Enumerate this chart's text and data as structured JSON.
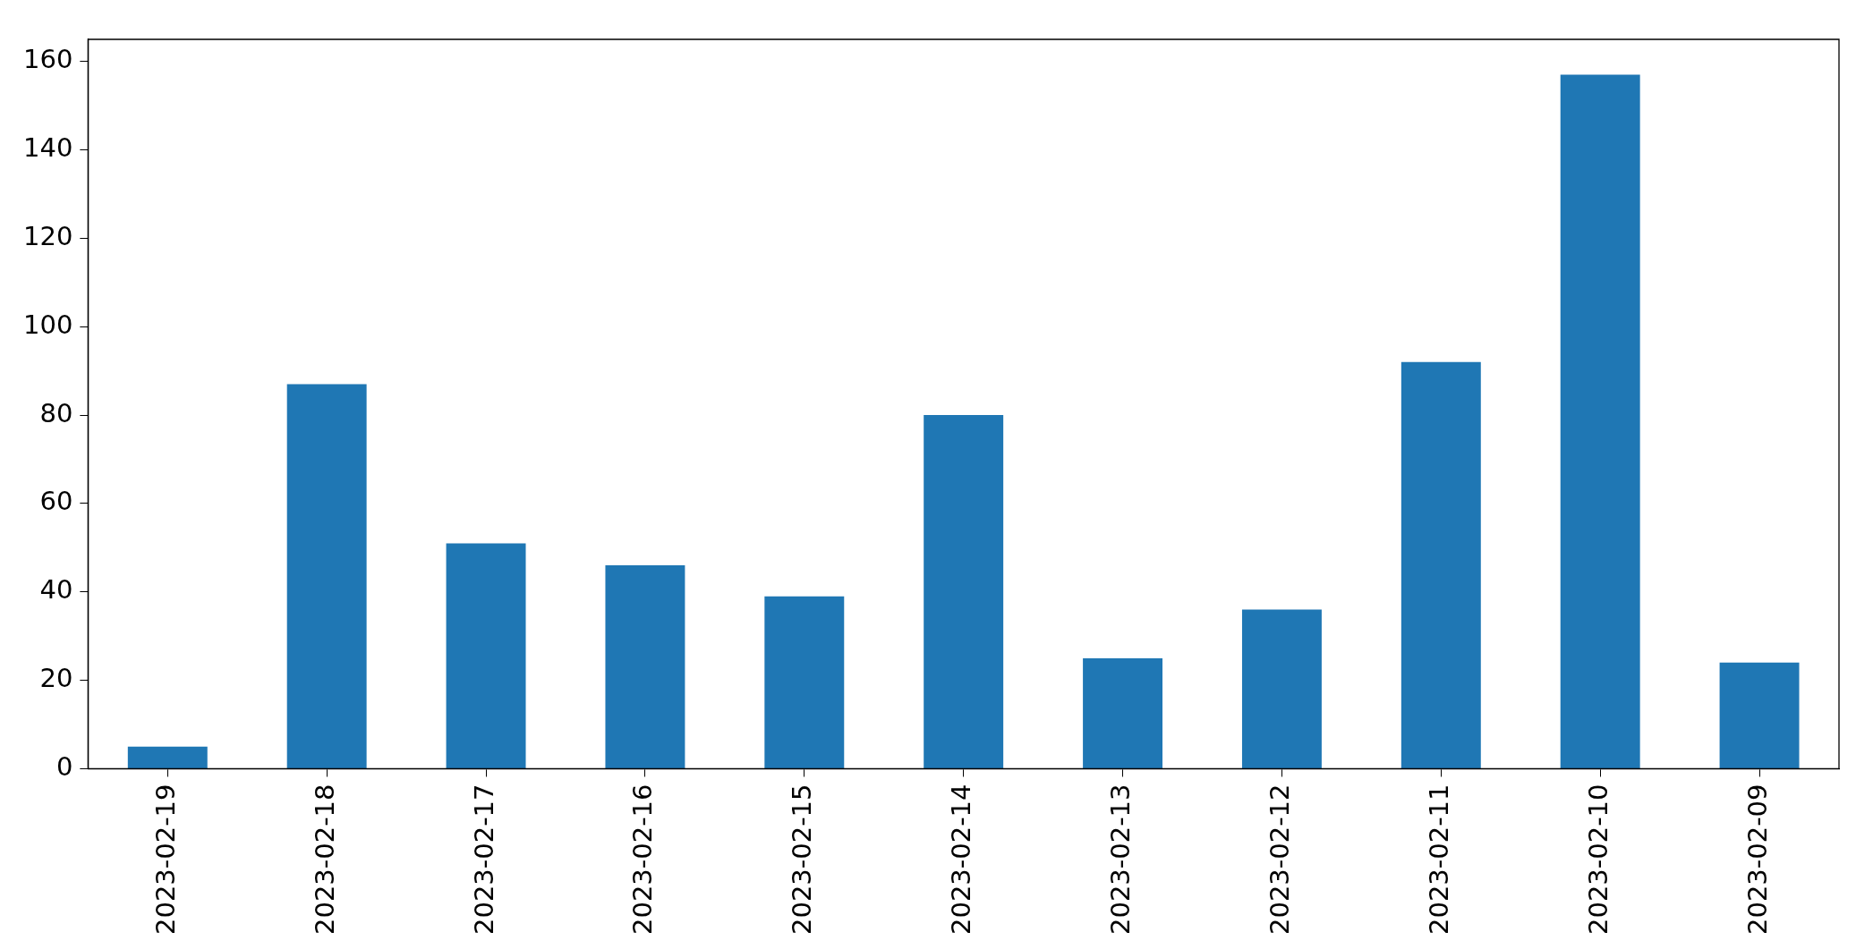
{
  "chart_data": {
    "type": "bar",
    "categories": [
      "2023-02-19",
      "2023-02-18",
      "2023-02-17",
      "2023-02-16",
      "2023-02-15",
      "2023-02-14",
      "2023-02-13",
      "2023-02-12",
      "2023-02-11",
      "2023-02-10",
      "2023-02-09"
    ],
    "values": [
      5,
      87,
      51,
      46,
      39,
      80,
      25,
      36,
      92,
      157,
      24
    ],
    "color": "#1f77b4",
    "ylim": [
      0,
      165
    ],
    "yticks": [
      0,
      20,
      40,
      60,
      80,
      100,
      120,
      140,
      160
    ],
    "grid": false,
    "legend": false
  }
}
